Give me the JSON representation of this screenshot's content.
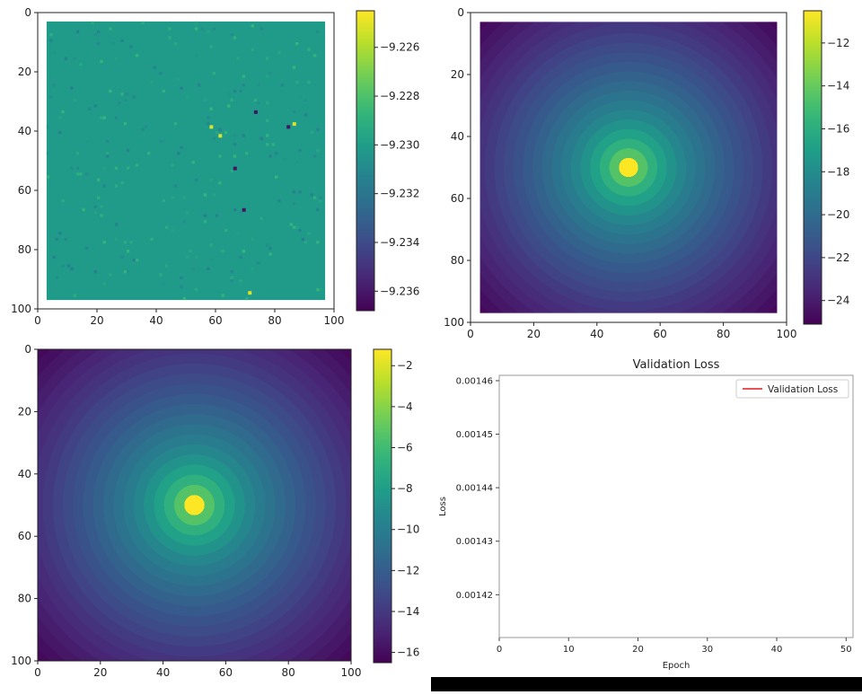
{
  "chart_data": [
    {
      "type": "heatmap",
      "panel": "top-left",
      "pattern": "noise",
      "cmap": "viridis",
      "xlim": [
        0,
        100
      ],
      "ylim": [
        100,
        0
      ],
      "x_ticks": [
        "0",
        "20",
        "40",
        "60",
        "80",
        "100"
      ],
      "y_ticks": [
        "0",
        "20",
        "40",
        "60",
        "80",
        "100"
      ],
      "data_extent": [
        3,
        97
      ],
      "base_value": -9.2301,
      "colorbar": {
        "min": -9.2368,
        "max": -9.2245,
        "ticks": [
          -9.226,
          -9.228,
          -9.23,
          -9.232,
          -9.234,
          -9.236
        ],
        "tick_labels": [
          "−9.226",
          "−9.228",
          "−9.230",
          "−9.232",
          "−9.234",
          "−9.236"
        ]
      }
    },
    {
      "type": "heatmap",
      "panel": "top-right",
      "pattern": "radial",
      "cmap": "viridis",
      "xlim": [
        0,
        100
      ],
      "ylim": [
        100,
        0
      ],
      "x_ticks": [
        "0",
        "20",
        "40",
        "60",
        "80",
        "100"
      ],
      "y_ticks": [
        "0",
        "20",
        "40",
        "60",
        "80",
        "100"
      ],
      "data_extent": [
        3,
        97
      ],
      "center": [
        50,
        50
      ],
      "center_value": -10.5,
      "edge_value": -25.1,
      "colorbar": {
        "min": -25.1,
        "max": -10.5,
        "ticks": [
          -12,
          -14,
          -16,
          -18,
          -20,
          -22,
          -24
        ],
        "tick_labels": [
          "−12",
          "−14",
          "−16",
          "−18",
          "−20",
          "−22",
          "−24"
        ]
      }
    },
    {
      "type": "heatmap",
      "panel": "bottom-left",
      "pattern": "radial",
      "cmap": "viridis",
      "xlim": [
        0,
        100
      ],
      "ylim": [
        100,
        0
      ],
      "x_ticks": [
        "0",
        "20",
        "40",
        "60",
        "80",
        "100"
      ],
      "y_ticks": [
        "0",
        "20",
        "40",
        "60",
        "80",
        "100"
      ],
      "data_extent": [
        0,
        100
      ],
      "center": [
        50,
        50
      ],
      "center_value": -1.2,
      "edge_value": -16.5,
      "colorbar": {
        "min": -16.5,
        "max": -1.2,
        "ticks": [
          -2,
          -4,
          -6,
          -8,
          -10,
          -12,
          -14,
          -16
        ],
        "tick_labels": [
          "−2",
          "−4",
          "−6",
          "−8",
          "−10",
          "−12",
          "−14",
          "−16"
        ]
      }
    },
    {
      "type": "line",
      "panel": "bottom-right",
      "title": "Validation Loss",
      "xlabel": "Epoch",
      "ylabel": "Loss",
      "xlim": [
        0,
        51
      ],
      "ylim": [
        0.001412,
        0.001461
      ],
      "x_ticks": [
        0,
        10,
        20,
        30,
        40,
        50
      ],
      "x_tick_labels": [
        "0",
        "10",
        "20",
        "30",
        "40",
        "50"
      ],
      "y_ticks": [
        0.00142,
        0.00143,
        0.00144,
        0.00145,
        0.00146
      ],
      "y_tick_labels": [
        "0.00142",
        "0.00143",
        "0.00144",
        "0.00145",
        "0.00146"
      ],
      "series": [
        {
          "name": "Validation Loss",
          "color": "#e41a1c",
          "x": [],
          "y": []
        }
      ],
      "legend": "top-right"
    }
  ]
}
